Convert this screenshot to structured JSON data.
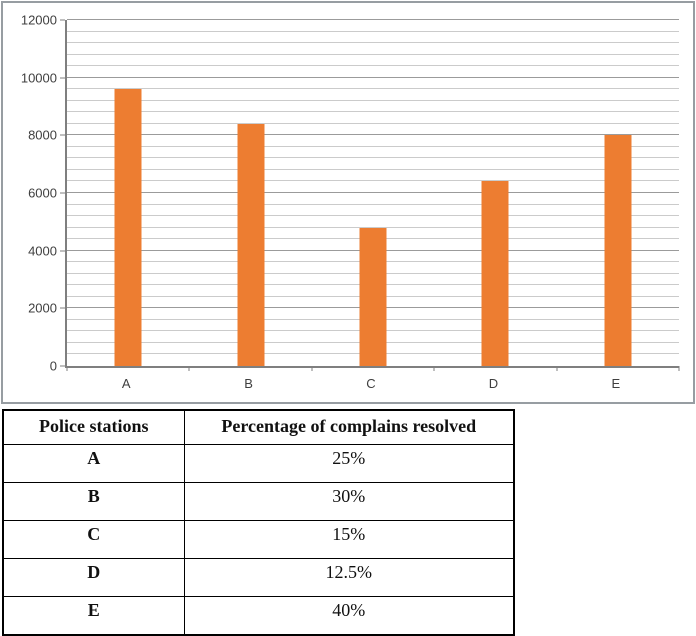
{
  "chart_data": {
    "type": "bar",
    "title": "",
    "xlabel": "",
    "ylabel": "",
    "categories": [
      "A",
      "B",
      "C",
      "D",
      "E"
    ],
    "values": [
      9600,
      8400,
      4800,
      6400,
      8000
    ],
    "ylim": [
      0,
      12000
    ],
    "y_major_step": 2000,
    "y_minor_step": 400,
    "y_tick_labels": [
      "0",
      "2000",
      "4000",
      "6000",
      "8000",
      "10000",
      "12000"
    ],
    "grid": "horizontal major+minor",
    "legend": "none",
    "bar_color": "#ED7D31",
    "axis_label_color": "#3F3F3F"
  },
  "table": {
    "headers": [
      "Police stations",
      "Percentage of complains resolved"
    ],
    "rows": [
      {
        "station": "A",
        "value": "25%"
      },
      {
        "station": "B",
        "value": "30%"
      },
      {
        "station": "C",
        "value": "15%"
      },
      {
        "station": "D",
        "value": "12.5%"
      },
      {
        "station": "E",
        "value": "40%"
      }
    ]
  }
}
